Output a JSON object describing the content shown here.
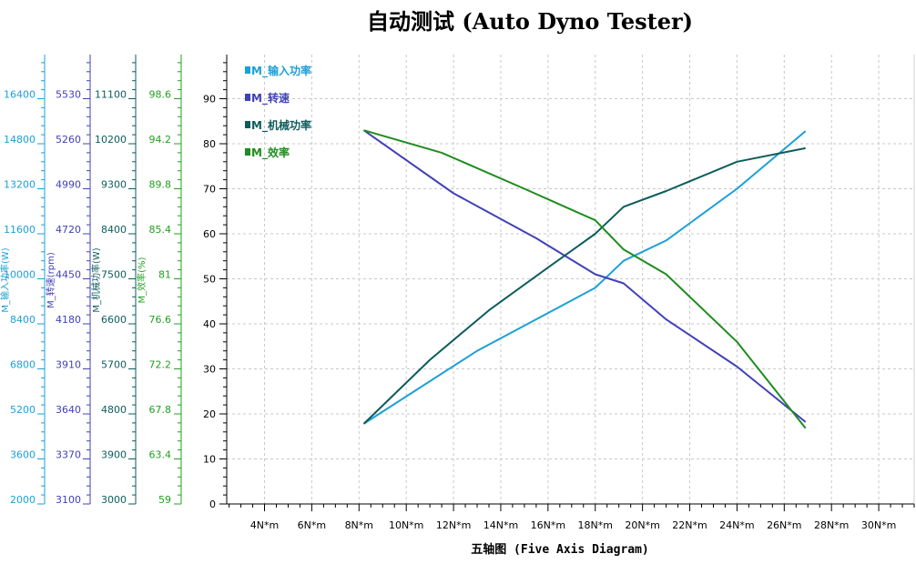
{
  "chart_data": {
    "type": "line",
    "title": "自动测试 (Auto Dyno Tester)",
    "xlabel": "五轴图 (Five Axis Diagram)",
    "x_ticks": [
      "4N*m",
      "6N*m",
      "8N*m",
      "10N*m",
      "12N*m",
      "14N*m",
      "16N*m",
      "18N*m",
      "20N*m",
      "22N*m",
      "24N*m",
      "26N*m",
      "28N*m",
      "30N*m"
    ],
    "xlim": [
      2.4,
      31.5
    ],
    "main_ylim": [
      0,
      100
    ],
    "main_ticks": [
      "0",
      "10",
      "20",
      "30",
      "40",
      "50",
      "60",
      "70",
      "80",
      "90"
    ],
    "grid": true,
    "legend_position": "top-left",
    "axes": [
      {
        "name": "M_输入功率(W)",
        "color": "#1ca0d8",
        "ticks": [
          "2000",
          "3600",
          "5200",
          "6800",
          "8400",
          "10000",
          "11600",
          "13200",
          "14800",
          "16400"
        ]
      },
      {
        "name": "M_转速(rpm)",
        "color": "#4141b8",
        "ticks": [
          "3100",
          "3370",
          "3640",
          "3910",
          "4180",
          "4450",
          "4720",
          "4990",
          "5260",
          "5530"
        ]
      },
      {
        "name": "M_机械功率(W)",
        "color": "#0e5c5c",
        "ticks": [
          "3000",
          "3900",
          "4800",
          "5700",
          "6600",
          "7500",
          "8400",
          "9300",
          "10200",
          "11100"
        ]
      },
      {
        "name": "M_效率(%)",
        "color": "#22a022",
        "ticks": [
          "59",
          "63.4",
          "67.8",
          "72.2",
          "76.6",
          "81",
          "85.4",
          "89.8",
          "94.2",
          "98.6"
        ]
      }
    ],
    "series": [
      {
        "name": "M_输入功率",
        "color": "#1ca0d8",
        "x": [
          8.2,
          13.0,
          18.0,
          19.2,
          21.0,
          24.0,
          26.9
        ],
        "y": [
          17.8,
          34.0,
          48.0,
          54.0,
          58.5,
          70.0,
          82.8
        ]
      },
      {
        "name": "M_转速",
        "color": "#4141b8",
        "x": [
          8.2,
          12.0,
          15.5,
          18.0,
          19.2,
          21.0,
          24.0,
          26.9
        ],
        "y": [
          83.0,
          69.0,
          59.0,
          51.0,
          49.0,
          41.0,
          30.5,
          18.2
        ]
      },
      {
        "name": "M_机械功率",
        "color": "#0e5c5c",
        "x": [
          8.2,
          11.0,
          13.5,
          16.0,
          18.0,
          19.2,
          21.0,
          24.0,
          26.9
        ],
        "y": [
          17.8,
          32.0,
          43.0,
          52.5,
          60.0,
          66.0,
          69.5,
          76.0,
          79.0
        ]
      },
      {
        "name": "M_效率",
        "color": "#1e8c1e",
        "x": [
          8.2,
          11.5,
          15.0,
          18.0,
          19.2,
          21.0,
          24.0,
          26.9
        ],
        "y": [
          83.0,
          78.0,
          70.0,
          63.0,
          56.5,
          51.0,
          36.0,
          16.8
        ]
      }
    ]
  }
}
